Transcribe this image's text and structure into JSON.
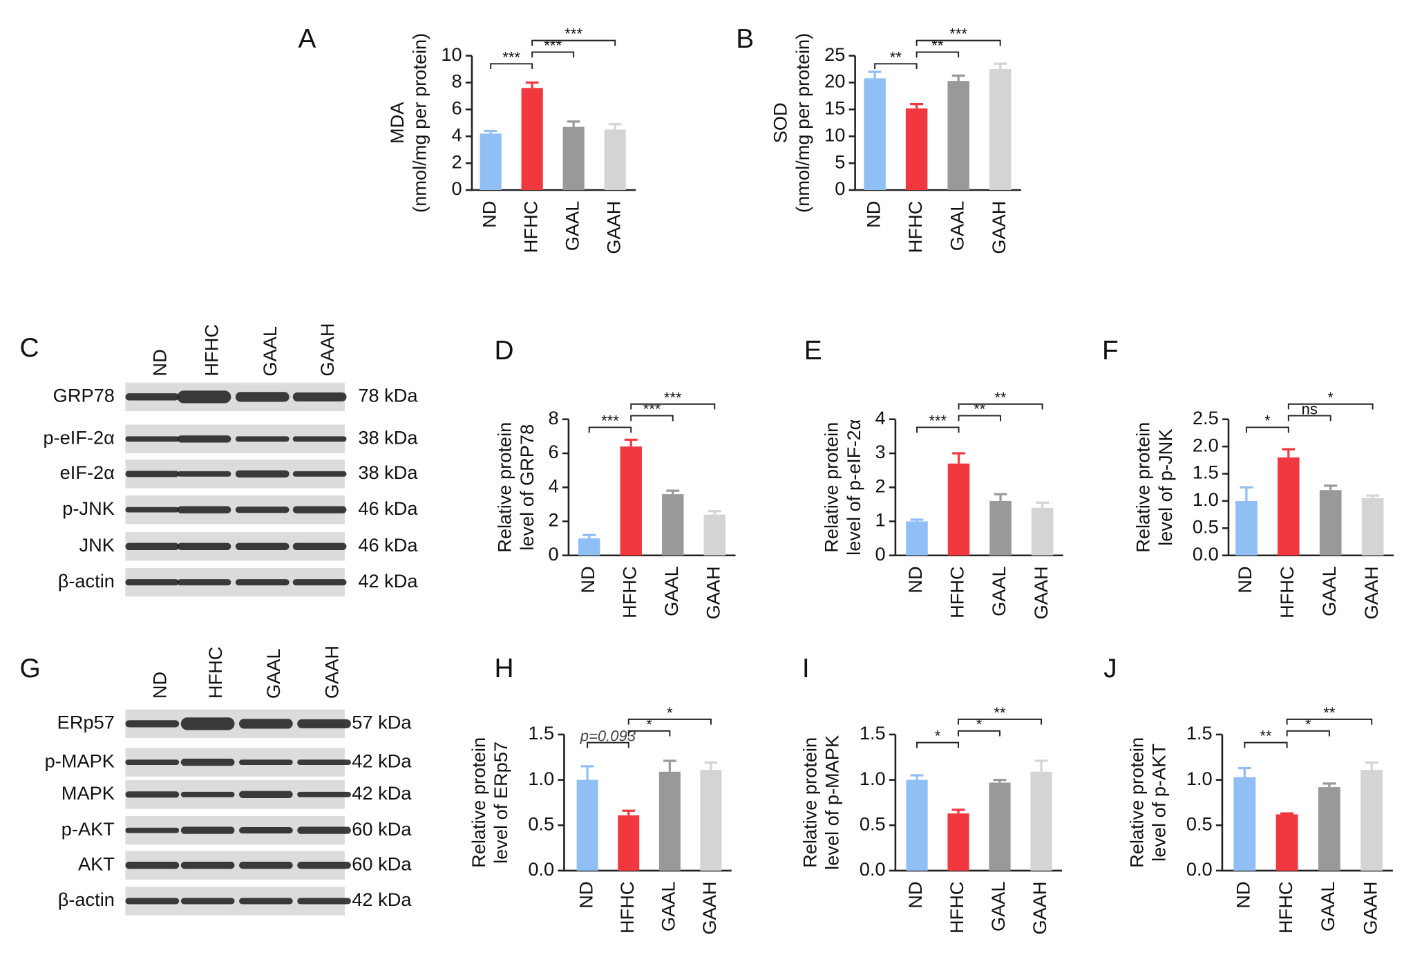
{
  "chart_data": [
    {
      "type": "bar",
      "panel": "A",
      "y_label": [
        "MDA",
        "(nmol/mg per protein)"
      ],
      "categories": [
        "ND",
        "HFHC",
        "GAAL",
        "GAAH"
      ],
      "values": [
        4.2,
        7.6,
        4.7,
        4.5
      ],
      "errors": [
        0.2,
        0.4,
        0.4,
        0.4
      ],
      "colors": [
        "#8fbff5",
        "#f2383f",
        "#99999c",
        "#d4d4d4"
      ],
      "ylim": [
        0,
        10
      ],
      "yticks": [
        0,
        2,
        4,
        6,
        8,
        10
      ],
      "significance": [
        {
          "from": 0,
          "to": 1,
          "label": "***"
        },
        {
          "from": 1,
          "to": 2,
          "label": "***"
        },
        {
          "from": 1,
          "to": 3,
          "label": "***"
        }
      ]
    },
    {
      "type": "bar",
      "panel": "B",
      "y_label": [
        "SOD",
        "(nmol/mg per protein)"
      ],
      "categories": [
        "ND",
        "HFHC",
        "GAAL",
        "GAAH"
      ],
      "values": [
        20.8,
        15.2,
        20.3,
        22.5
      ],
      "errors": [
        1.2,
        0.8,
        1.0,
        1.0
      ],
      "colors": [
        "#8fbff5",
        "#f2383f",
        "#99999c",
        "#d4d4d4"
      ],
      "ylim": [
        0,
        25
      ],
      "yticks": [
        0,
        5,
        10,
        15,
        20,
        25
      ],
      "significance": [
        {
          "from": 0,
          "to": 1,
          "label": "**"
        },
        {
          "from": 1,
          "to": 2,
          "label": "**"
        },
        {
          "from": 1,
          "to": 3,
          "label": "***"
        }
      ]
    },
    {
      "type": "bar",
      "panel": "D",
      "y_label": [
        "Relative protein",
        "level of GRP78"
      ],
      "categories": [
        "ND",
        "HFHC",
        "GAAL",
        "GAAH"
      ],
      "values": [
        1.0,
        6.4,
        3.6,
        2.4
      ],
      "errors": [
        0.2,
        0.4,
        0.2,
        0.2
      ],
      "colors": [
        "#8fbff5",
        "#f2383f",
        "#99999c",
        "#d4d4d4"
      ],
      "ylim": [
        0,
        8
      ],
      "yticks": [
        0,
        2,
        4,
        6,
        8
      ],
      "significance": [
        {
          "from": 0,
          "to": 1,
          "label": "***"
        },
        {
          "from": 1,
          "to": 2,
          "label": "***"
        },
        {
          "from": 1,
          "to": 3,
          "label": "***"
        }
      ]
    },
    {
      "type": "bar",
      "panel": "E",
      "y_label": [
        "Relative protein",
        "level of p-eIF-2α"
      ],
      "categories": [
        "ND",
        "HFHC",
        "GAAL",
        "GAAH"
      ],
      "values": [
        1.0,
        2.7,
        1.6,
        1.4
      ],
      "errors": [
        0.05,
        0.3,
        0.2,
        0.15
      ],
      "colors": [
        "#8fbff5",
        "#f2383f",
        "#99999c",
        "#d4d4d4"
      ],
      "ylim": [
        0,
        4
      ],
      "yticks": [
        0,
        1,
        2,
        3,
        4
      ],
      "significance": [
        {
          "from": 0,
          "to": 1,
          "label": "***"
        },
        {
          "from": 1,
          "to": 2,
          "label": "**"
        },
        {
          "from": 1,
          "to": 3,
          "label": "**"
        }
      ]
    },
    {
      "type": "bar",
      "panel": "F",
      "y_label": [
        "Relative protein",
        "level of p-JNK"
      ],
      "categories": [
        "ND",
        "HFHC",
        "GAAL",
        "GAAH"
      ],
      "values": [
        1.0,
        1.8,
        1.2,
        1.05
      ],
      "errors": [
        0.25,
        0.15,
        0.08,
        0.05
      ],
      "colors": [
        "#8fbff5",
        "#f2383f",
        "#99999c",
        "#d4d4d4"
      ],
      "ylim": [
        0,
        2.5
      ],
      "yticks": [
        {
          "value": 0,
          "label": "0.0"
        },
        0.5,
        {
          "value": 1,
          "label": "1.0"
        },
        1.5,
        {
          "value": 2,
          "label": "2.0"
        },
        2.5
      ],
      "significance": [
        {
          "from": 0,
          "to": 1,
          "label": "*"
        },
        {
          "from": 1,
          "to": 2,
          "label": "ns"
        },
        {
          "from": 1,
          "to": 3,
          "label": "*"
        }
      ]
    },
    {
      "type": "bar",
      "panel": "H",
      "y_label": [
        "Relative protein",
        "level of ERp57"
      ],
      "categories": [
        "ND",
        "HFHC",
        "GAAL",
        "GAAH"
      ],
      "values": [
        1.0,
        0.61,
        1.09,
        1.11
      ],
      "errors": [
        0.15,
        0.05,
        0.12,
        0.08
      ],
      "colors": [
        "#8fbff5",
        "#f2383f",
        "#99999c",
        "#d4d4d4"
      ],
      "ylim": [
        0,
        1.5
      ],
      "yticks": [
        {
          "value": 0,
          "label": "0.0"
        },
        0.5,
        {
          "value": 1,
          "label": "1.0"
        },
        1.5
      ],
      "significance": [
        {
          "from": 0,
          "to": 1,
          "label": "p=0.093"
        },
        {
          "from": 1,
          "to": 2,
          "label": "*"
        },
        {
          "from": 1,
          "to": 3,
          "label": "*"
        }
      ]
    },
    {
      "type": "bar",
      "panel": "I",
      "y_label": [
        "Relative protein",
        "level of p-MAPK"
      ],
      "categories": [
        "ND",
        "HFHC",
        "GAAL",
        "GAAH"
      ],
      "values": [
        1.0,
        0.63,
        0.97,
        1.09
      ],
      "errors": [
        0.05,
        0.04,
        0.03,
        0.12
      ],
      "colors": [
        "#8fbff5",
        "#f2383f",
        "#99999c",
        "#d4d4d4"
      ],
      "ylim": [
        0,
        1.5
      ],
      "yticks": [
        {
          "value": 0,
          "label": "0.0"
        },
        0.5,
        {
          "value": 1,
          "label": "1.0"
        },
        1.5
      ],
      "significance": [
        {
          "from": 0,
          "to": 1,
          "label": "*"
        },
        {
          "from": 1,
          "to": 2,
          "label": "*"
        },
        {
          "from": 1,
          "to": 3,
          "label": "**"
        }
      ]
    },
    {
      "type": "bar",
      "panel": "J",
      "y_label": [
        "Relative protein",
        "level of p-AKT"
      ],
      "categories": [
        "ND",
        "HFHC",
        "GAAL",
        "GAAH"
      ],
      "values": [
        1.03,
        0.62,
        0.92,
        1.11
      ],
      "errors": [
        0.1,
        0.01,
        0.04,
        0.08
      ],
      "colors": [
        "#8fbff5",
        "#f2383f",
        "#99999c",
        "#d4d4d4"
      ],
      "ylim": [
        0,
        1.5
      ],
      "yticks": [
        {
          "value": 0,
          "label": "0.0"
        },
        0.5,
        {
          "value": 1,
          "label": "1.0"
        },
        1.5
      ],
      "significance": [
        {
          "from": 0,
          "to": 1,
          "label": "**"
        },
        {
          "from": 1,
          "to": 2,
          "label": "*"
        },
        {
          "from": 1,
          "to": 3,
          "label": "**"
        }
      ]
    }
  ],
  "blots": [
    {
      "panel": "C",
      "lanes": [
        "ND",
        "HFHC",
        "GAAL",
        "GAAH"
      ],
      "rows": [
        {
          "protein": "GRP78",
          "size": "78 kDa"
        },
        {
          "protein": "p-eIF-2α",
          "size": "38 kDa"
        },
        {
          "protein": "eIF-2α",
          "size": "38 kDa"
        },
        {
          "protein": "p-JNK",
          "size": "46 kDa"
        },
        {
          "protein": "JNK",
          "size": "46 kDa"
        },
        {
          "protein": "β-actin",
          "size": "42 kDa"
        }
      ]
    },
    {
      "panel": "G",
      "lanes": [
        "ND",
        "HFHC",
        "GAAL",
        "GAAH"
      ],
      "rows": [
        {
          "protein": "ERp57",
          "size": "57 kDa"
        },
        {
          "protein": "p-MAPK",
          "size": "42 kDa"
        },
        {
          "protein": "MAPK",
          "size": "42 kDa"
        },
        {
          "protein": "p-AKT",
          "size": "60 kDa"
        },
        {
          "protein": "AKT",
          "size": "60 kDa"
        },
        {
          "protein": "β-actin",
          "size": "42 kDa"
        }
      ]
    }
  ]
}
